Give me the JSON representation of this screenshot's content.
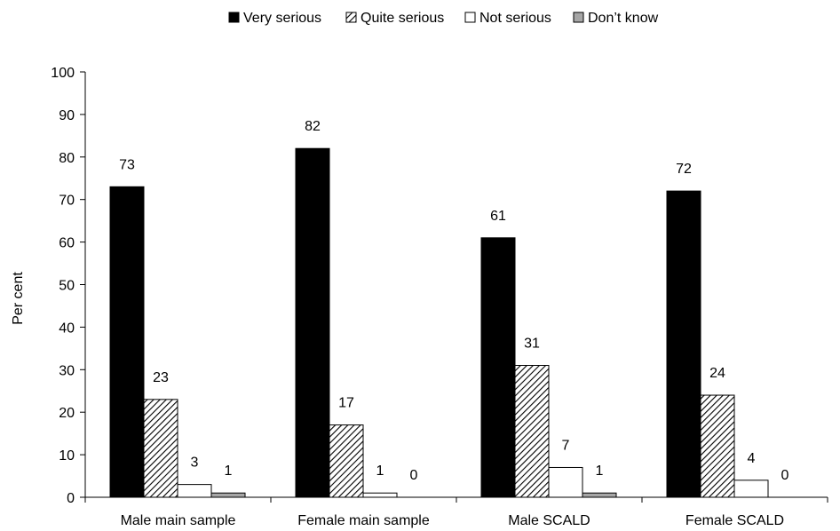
{
  "chart_data": {
    "type": "bar",
    "title": "",
    "xlabel": "",
    "ylabel": "Per cent",
    "ylim": [
      0,
      100
    ],
    "yticks": [
      0,
      10,
      20,
      30,
      40,
      50,
      60,
      70,
      80,
      90,
      100
    ],
    "grid": false,
    "legend_position": "top",
    "categories": [
      "Male main sample",
      "Female main sample",
      "Male SCALD",
      "Female SCALD"
    ],
    "series": [
      {
        "name": "Very serious",
        "values": [
          73,
          82,
          61,
          72
        ],
        "color": "#000000",
        "pattern": "solid"
      },
      {
        "name": "Quite serious",
        "values": [
          23,
          17,
          31,
          24
        ],
        "color": "#000000",
        "pattern": "diagonal-hatch"
      },
      {
        "name": "Not serious",
        "values": [
          3,
          1,
          7,
          4
        ],
        "color": "#ffffff",
        "pattern": "solid"
      },
      {
        "name": "Don’t know",
        "values": [
          1,
          0,
          1,
          0
        ],
        "color": "#a6a6a6",
        "pattern": "solid"
      }
    ]
  }
}
